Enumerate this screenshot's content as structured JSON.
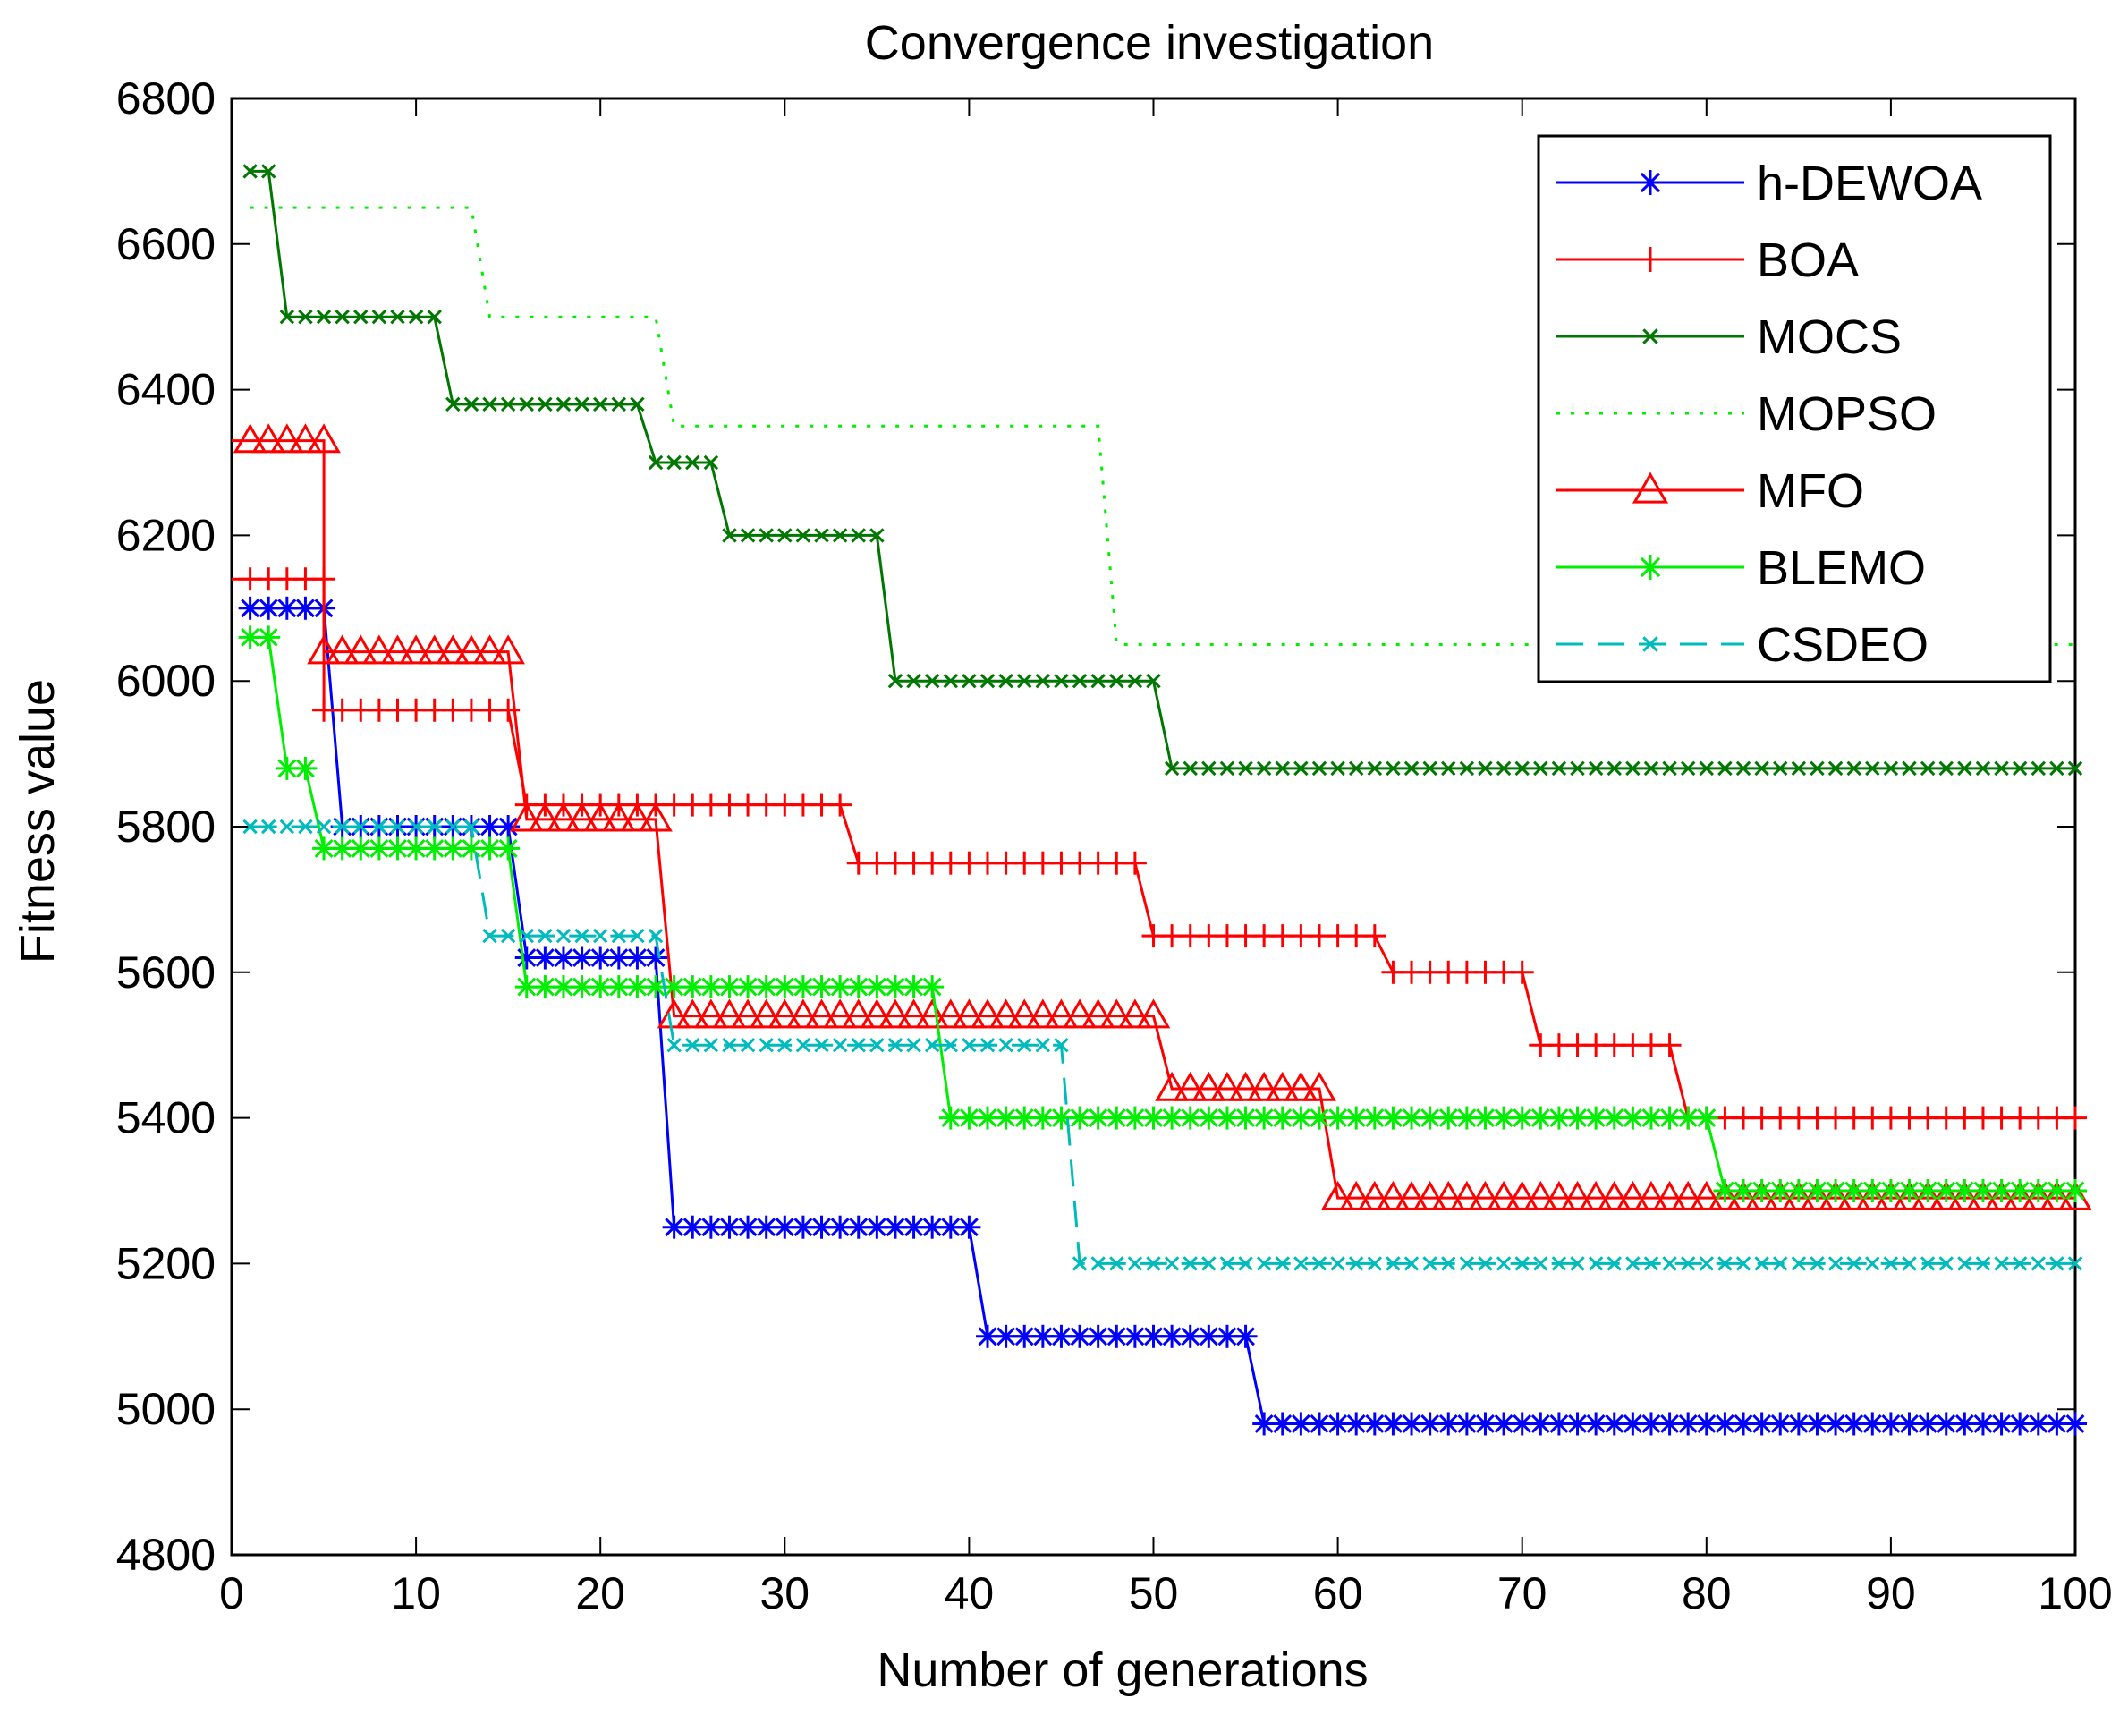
{
  "chart_data": {
    "type": "line",
    "title": "Convergence investigation",
    "xlabel": "Number of generations",
    "ylabel": "Fitness value",
    "xlim": [
      0,
      100
    ],
    "ylim": [
      4800,
      6800
    ],
    "xticks": [
      "0",
      "10",
      "20",
      "30",
      "40",
      "50",
      "60",
      "70",
      "80",
      "90",
      "100"
    ],
    "yticks": [
      "4800",
      "5000",
      "5200",
      "5400",
      "5600",
      "5800",
      "6000",
      "6200",
      "6400",
      "6600",
      "6800"
    ],
    "legend_position": "top-right",
    "series": [
      {
        "name": "h-DEWOA",
        "color": "#0000ff",
        "marker": "star",
        "dash": "solid",
        "markers_from": 1,
        "segments": [
          [
            1,
            5,
            6100
          ],
          [
            6,
            15,
            5800
          ],
          [
            16,
            23,
            5620
          ],
          [
            24,
            40,
            5250
          ],
          [
            41,
            55,
            5100
          ],
          [
            56,
            100,
            4980
          ]
        ]
      },
      {
        "name": "BOA",
        "color": "#ff0000",
        "marker": "plus",
        "dash": "solid",
        "markers_from": 1,
        "segments": [
          [
            0,
            5,
            6140
          ],
          [
            5,
            15,
            5960
          ],
          [
            16,
            33,
            5830
          ],
          [
            34,
            49,
            5750
          ],
          [
            50,
            62,
            5650
          ],
          [
            63,
            70,
            5600
          ],
          [
            71,
            78,
            5500
          ],
          [
            79,
            100,
            5400
          ]
        ]
      },
      {
        "name": "MOCS",
        "color": "#007700",
        "marker": "x",
        "dash": "solid",
        "markers_from": 1,
        "segments": [
          [
            1,
            2,
            6700
          ],
          [
            3,
            11,
            6500
          ],
          [
            12,
            22,
            6380
          ],
          [
            23,
            26,
            6300
          ],
          [
            27,
            35,
            6200
          ],
          [
            36,
            50,
            6000
          ],
          [
            51,
            100,
            5880
          ]
        ]
      },
      {
        "name": "MOPSO",
        "color": "#00ee00",
        "marker": "none",
        "dash": "dotted",
        "markers_from": 1,
        "segments": [
          [
            1,
            13,
            6650
          ],
          [
            14,
            23,
            6500
          ],
          [
            24,
            47,
            6350
          ],
          [
            48,
            100,
            6050
          ]
        ]
      },
      {
        "name": "MFO",
        "color": "#ff0000",
        "marker": "triangle",
        "dash": "solid",
        "markers_from": 1,
        "segments": [
          [
            0,
            5,
            6330
          ],
          [
            5,
            15,
            6040
          ],
          [
            16,
            23,
            5810
          ],
          [
            24,
            50,
            5540
          ],
          [
            51,
            59,
            5440
          ],
          [
            60,
            100,
            5290
          ]
        ]
      },
      {
        "name": "BLEMO",
        "color": "#00ee00",
        "marker": "star",
        "dash": "solid",
        "markers_from": 1,
        "segments": [
          [
            1,
            2,
            6060
          ],
          [
            3,
            4,
            5880
          ],
          [
            5,
            15,
            5770
          ],
          [
            16,
            38,
            5580
          ],
          [
            39,
            80,
            5400
          ],
          [
            81,
            100,
            5300
          ]
        ]
      },
      {
        "name": "CSDEO",
        "color": "#00bbbb",
        "marker": "x",
        "dash": "dashed",
        "markers_from": 1,
        "segments": [
          [
            1,
            13,
            5800
          ],
          [
            14,
            23,
            5650
          ],
          [
            24,
            45,
            5500
          ],
          [
            46,
            100,
            5200
          ]
        ]
      }
    ]
  }
}
